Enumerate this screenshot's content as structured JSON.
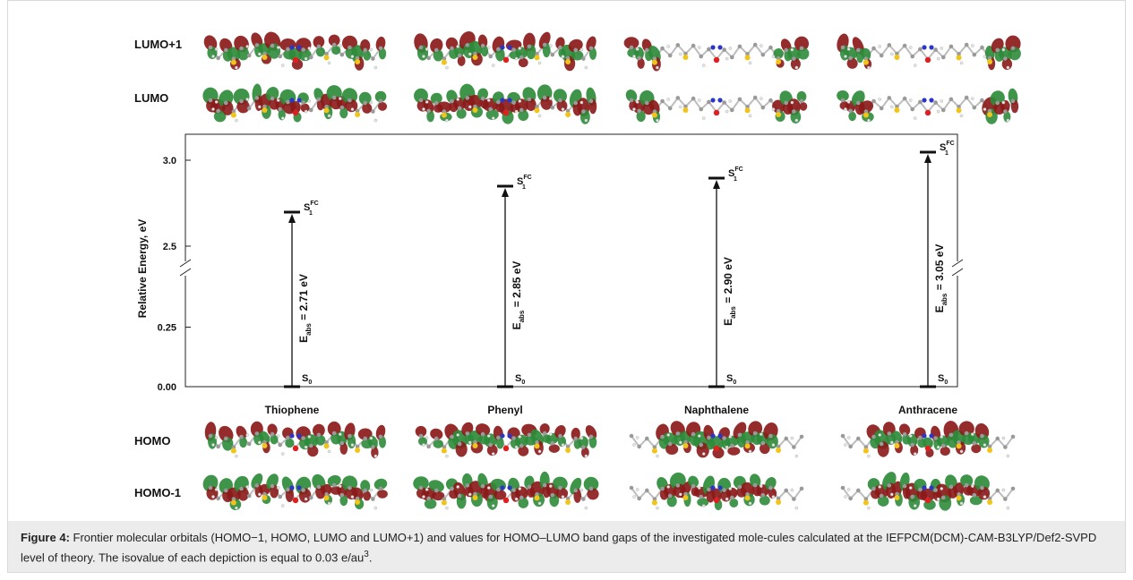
{
  "orbital_labels": {
    "lumo_plus_1": "LUMO+1",
    "lumo": "LUMO",
    "homo": "HOMO",
    "homo_minus_1": "HOMO-1"
  },
  "chart_data": {
    "type": "bar",
    "ylabel": "Relative Energy, eV",
    "y_ticks": [
      "3.0",
      "2.5",
      "0.25",
      "0.00"
    ],
    "axis_break": true,
    "categories": [
      "Thiophene",
      "Phenyl",
      "Naphthalene",
      "Anthracene"
    ],
    "values": [
      2.71,
      2.85,
      2.9,
      3.05
    ],
    "arrow_labels": [
      "E_abs = 2.71 eV",
      "E_abs = 2.85 eV",
      "E_abs = 2.90 eV",
      "E_abs = 3.05 eV"
    ],
    "ground_state_label": "S0",
    "excited_state_label": "S1FC"
  },
  "caption": {
    "label": "Figure 4:",
    "text": " Frontier molecular orbitals (HOMO−1, HOMO, LUMO and LUMO+1) and values for HOMO–LUMO band gaps of the investigated mole-cules calculated at the IEFPCM(DCM)-CAM-B3LYP/Def2-SVPD level of theory. The isovalue of each depiction is equal to 0.03 e/au",
    "superscript": "3",
    "end": "."
  },
  "colors": {
    "orbital_positive": "#2e8b3a",
    "orbital_negative": "#8b1a1a",
    "sulfur": "#f0c419",
    "nitrogen": "#2b35c9",
    "oxygen": "#e02020",
    "carbon": "#9a9a9a",
    "caption_bg": "#ececec"
  }
}
